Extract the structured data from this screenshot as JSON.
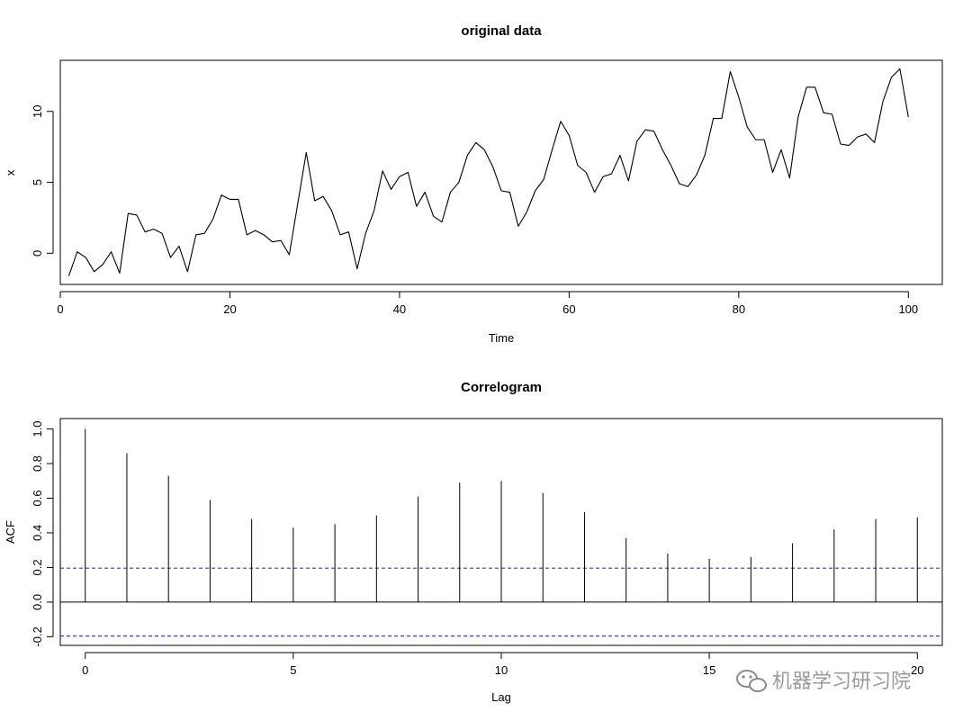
{
  "chart_data": [
    {
      "type": "line",
      "title": "original data",
      "xlabel": "Time",
      "ylabel": "x",
      "xlim": [
        0,
        104
      ],
      "ylim": [
        -2.2,
        13.6
      ],
      "x_ticks": [
        0,
        20,
        40,
        60,
        80,
        100
      ],
      "y_ticks": [
        0,
        5,
        10
      ],
      "color": "#000000",
      "series": [
        {
          "x": [
            1,
            2,
            3,
            4,
            5,
            6,
            7,
            8,
            9,
            10,
            11,
            12,
            13,
            14,
            15,
            16,
            17,
            18,
            19,
            20,
            21,
            22,
            23,
            24,
            25,
            26,
            27,
            28,
            29,
            30,
            31,
            32,
            33,
            34,
            35,
            36,
            37,
            38,
            39,
            40,
            41,
            42,
            43,
            44,
            45,
            46,
            47,
            48,
            49,
            50,
            51,
            52,
            53,
            54,
            55,
            56,
            57,
            58,
            59,
            60,
            61,
            62,
            63,
            64,
            65,
            66,
            67,
            68,
            69,
            70,
            71,
            72,
            73,
            74,
            75,
            76,
            77,
            78,
            79,
            80,
            81,
            82,
            83,
            84,
            85,
            86,
            87,
            88,
            89,
            90,
            91,
            92,
            93,
            94,
            95,
            96,
            97,
            98,
            99,
            100
          ],
          "values": [
            -1.6,
            0.1,
            -0.3,
            -1.3,
            -0.8,
            0.1,
            -1.4,
            2.8,
            2.7,
            1.5,
            1.7,
            1.4,
            -0.3,
            0.5,
            -1.3,
            1.3,
            1.4,
            2.4,
            4.1,
            3.8,
            3.8,
            1.3,
            1.6,
            1.3,
            0.8,
            0.9,
            -0.1,
            3.5,
            7.1,
            3.7,
            4.0,
            3.0,
            1.3,
            1.5,
            -1.1,
            1.4,
            3.0,
            5.8,
            4.5,
            5.4,
            5.7,
            3.3,
            4.3,
            2.6,
            2.2,
            4.3,
            5.0,
            6.9,
            7.8,
            7.3,
            6.1,
            4.4,
            4.3,
            1.9,
            2.9,
            4.4,
            5.2,
            7.3,
            9.3,
            8.3,
            6.2,
            5.7,
            4.3,
            5.4,
            5.6,
            6.9,
            5.1,
            7.9,
            8.7,
            8.6,
            7.3,
            6.2,
            4.9,
            4.7,
            5.5,
            6.9,
            9.5,
            9.5,
            12.8,
            11.0,
            8.9,
            8.0,
            8.0,
            5.7,
            7.3,
            5.3,
            9.6,
            11.7,
            11.7,
            9.9,
            9.8,
            7.7,
            7.6,
            8.2,
            8.4,
            7.8,
            10.7,
            12.4,
            13.0,
            9.6
          ]
        }
      ]
    },
    {
      "type": "bar",
      "title": "Correlogram",
      "xlabel": "Lag",
      "ylabel": "ACF",
      "xlim": [
        -0.6,
        20.6
      ],
      "ylim": [
        -0.25,
        1.06
      ],
      "x_ticks": [
        0,
        5,
        10,
        15,
        20
      ],
      "y_ticks": [
        -0.2,
        0.0,
        0.2,
        0.4,
        0.6,
        0.8,
        1.0
      ],
      "y_tick_labels": [
        "-0.2",
        "0.0",
        "0.2",
        "0.4",
        "0.6",
        "0.8",
        "1.0"
      ],
      "lags": [
        0,
        1,
        2,
        3,
        4,
        5,
        6,
        7,
        8,
        9,
        10,
        11,
        12,
        13,
        14,
        15,
        16,
        17,
        18,
        19,
        20
      ],
      "values": [
        1.0,
        0.86,
        0.73,
        0.59,
        0.48,
        0.43,
        0.45,
        0.5,
        0.61,
        0.69,
        0.7,
        0.63,
        0.52,
        0.37,
        0.28,
        0.25,
        0.26,
        0.34,
        0.42,
        0.48,
        0.49
      ],
      "confidence_bound": 0.196,
      "confidence_color": "#3333ff",
      "bar_color": "#000000"
    }
  ],
  "watermark": {
    "text": "机器学习研习院",
    "icon": "wechat-icon"
  }
}
